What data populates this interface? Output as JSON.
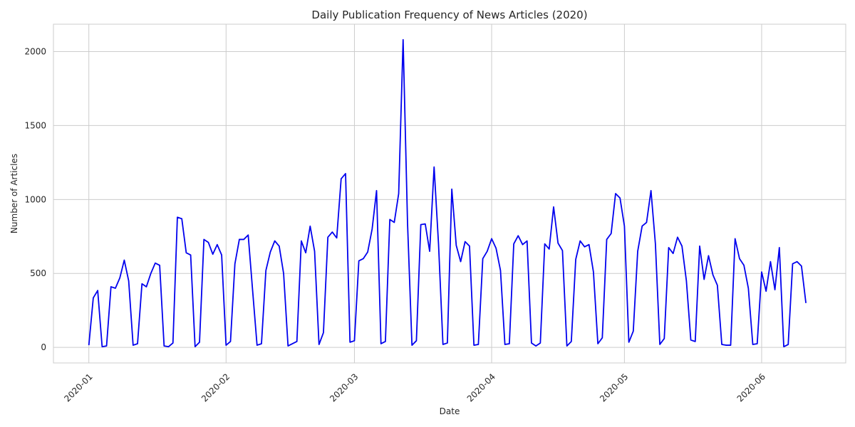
{
  "chart_data": {
    "type": "line",
    "title": "Daily Publication Frequency of News Articles (2020)",
    "xlabel": "Date",
    "ylabel": "Number of Articles",
    "x_start": "2020-01-01",
    "x_end": "2020-06-12",
    "xlim": [
      "2019-12-24",
      "2020-06-20"
    ],
    "ylim": [
      -105,
      2185
    ],
    "x_ticks": [
      "2020-01",
      "2020-02",
      "2020-03",
      "2020-04",
      "2020-05",
      "2020-06"
    ],
    "y_ticks": [
      0,
      500,
      1000,
      1500,
      2000
    ],
    "grid": true,
    "series": [
      {
        "color": "#0000ee",
        "values": [
          15,
          335,
          385,
          5,
          10,
          410,
          400,
          470,
          590,
          450,
          15,
          25,
          430,
          410,
          500,
          570,
          555,
          10,
          5,
          30,
          880,
          870,
          640,
          625,
          5,
          35,
          730,
          710,
          630,
          695,
          625,
          15,
          40,
          565,
          730,
          730,
          760,
          385,
          15,
          25,
          520,
          645,
          720,
          685,
          500,
          10,
          25,
          40,
          720,
          640,
          820,
          650,
          20,
          100,
          745,
          780,
          740,
          1140,
          1175,
          35,
          45,
          585,
          600,
          645,
          800,
          1060,
          25,
          40,
          865,
          845,
          1040,
          2080,
          840,
          15,
          45,
          830,
          835,
          650,
          1220,
          700,
          20,
          30,
          1070,
          690,
          580,
          715,
          685,
          15,
          20,
          600,
          650,
          735,
          670,
          520,
          20,
          25,
          700,
          755,
          695,
          720,
          30,
          10,
          30,
          700,
          665,
          950,
          705,
          655,
          10,
          40,
          595,
          720,
          680,
          695,
          510,
          25,
          65,
          730,
          770,
          1040,
          1010,
          820,
          35,
          110,
          650,
          820,
          845,
          1060,
          700,
          20,
          60,
          675,
          635,
          745,
          685,
          450,
          50,
          40,
          685,
          460,
          620,
          490,
          420,
          20,
          15,
          15,
          735,
          600,
          555,
          400,
          20,
          25,
          510,
          380,
          580,
          390,
          675,
          5,
          20,
          565,
          580,
          550,
          300
        ]
      }
    ]
  }
}
